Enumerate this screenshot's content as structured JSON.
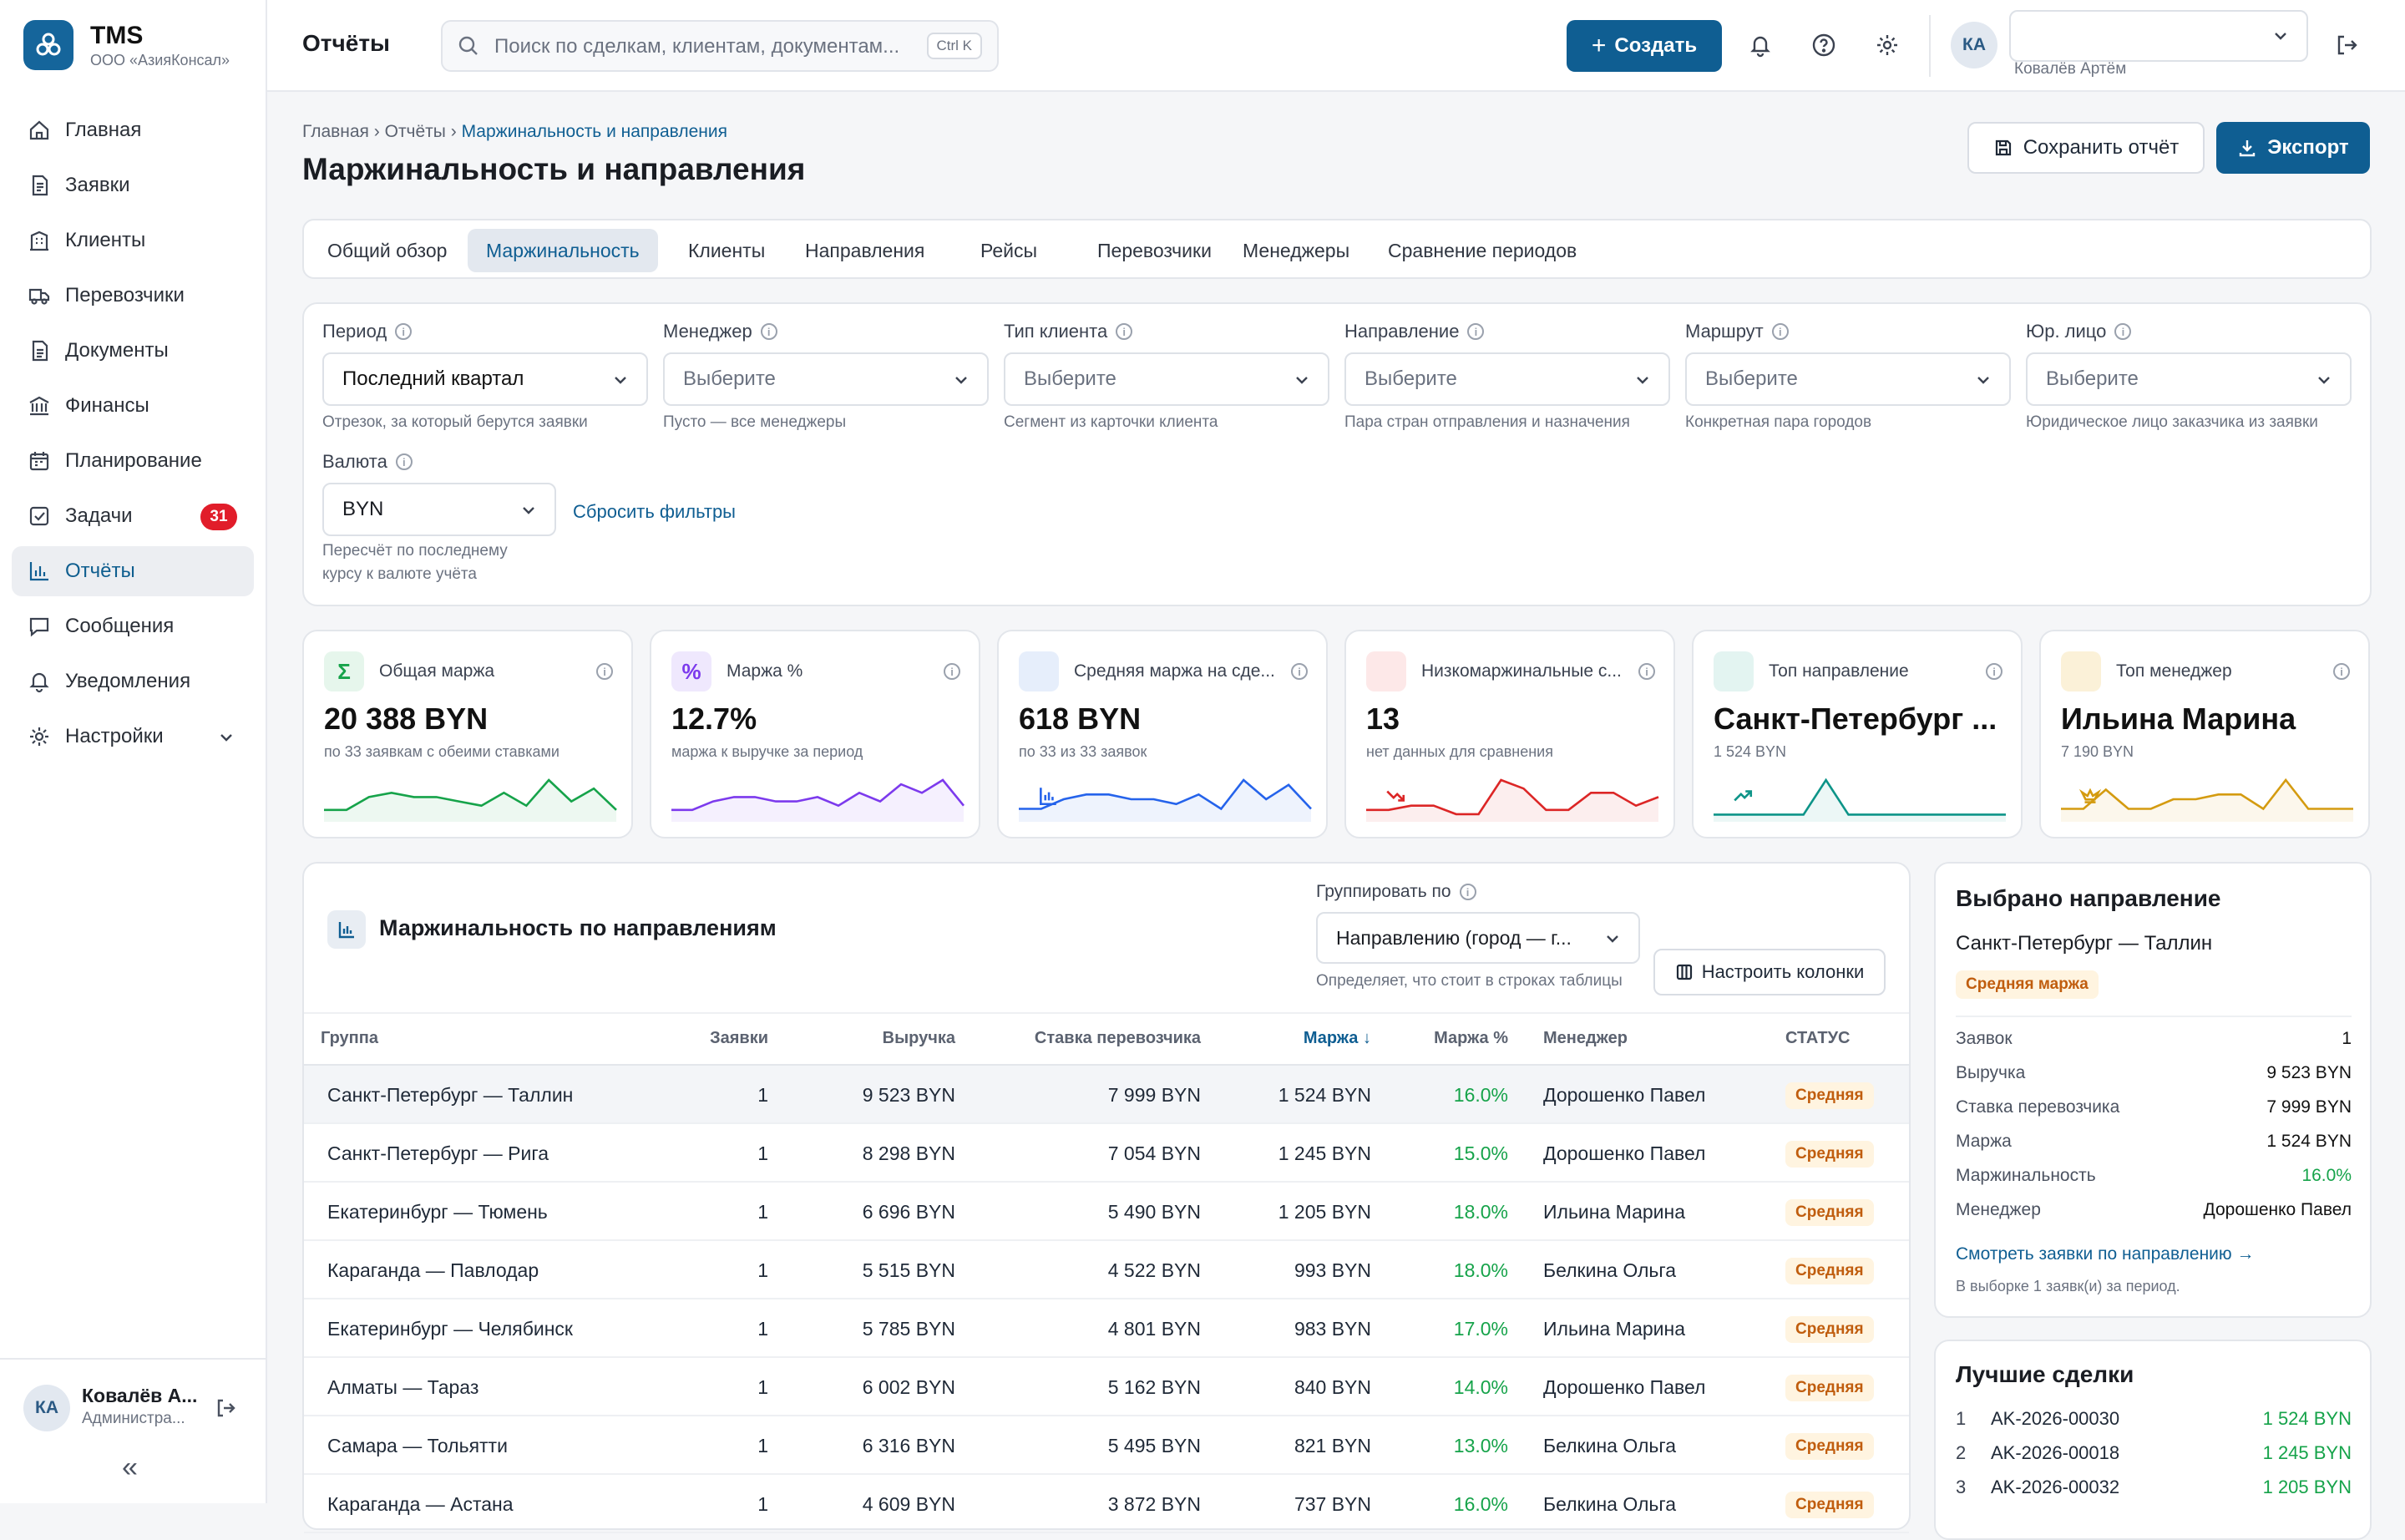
{
  "app": {
    "name": "TMS",
    "org": "ООО «АзияКонсал»"
  },
  "nav": {
    "items": [
      {
        "label": "Главная",
        "icon": "home-icon"
      },
      {
        "label": "Заявки",
        "icon": "document-icon"
      },
      {
        "label": "Клиенты",
        "icon": "building-icon"
      },
      {
        "label": "Перевозчики",
        "icon": "truck-icon"
      },
      {
        "label": "Документы",
        "icon": "file-icon"
      },
      {
        "label": "Финансы",
        "icon": "bank-icon"
      },
      {
        "label": "Планирование",
        "icon": "calendar-icon"
      },
      {
        "label": "Задачи",
        "icon": "checkbox-icon",
        "badge": "31"
      },
      {
        "label": "Отчёты",
        "icon": "bar-chart-icon",
        "active": true
      },
      {
        "label": "Сообщения",
        "icon": "message-icon"
      },
      {
        "label": "Уведомления",
        "icon": "bell-icon"
      },
      {
        "label": "Настройки",
        "icon": "gear-icon"
      }
    ],
    "user_initials": "КА",
    "user_name": "Ковалёв А...",
    "user_role": "Администра...",
    "collapse": "«"
  },
  "topbar": {
    "title": "Отчёты",
    "search_placeholder": "Поиск по сделкам, клиентам, документам...",
    "search_shortcut": "Ctrl K",
    "create_label": "Создать",
    "user_initials": "КА",
    "user_name": "Ковалёв Артём"
  },
  "page": {
    "breadcrumb": [
      "Главная",
      "Отчёты",
      "Маржинальность и направления"
    ],
    "title": "Маржинальность и направления",
    "save_label": "Сохранить отчёт",
    "export_label": "Экспорт"
  },
  "tabs": [
    "Общий обзор",
    "Маржинальность",
    "Клиенты",
    "Направления",
    "Рейсы",
    "Перевозчики",
    "Менеджеры",
    "Сравнение периодов"
  ],
  "active_tab": "Маржинальность",
  "filters": [
    {
      "label": "Период",
      "value": "Последний квартал",
      "hint": "Отрезок, за который берутся заявки"
    },
    {
      "label": "Менеджер",
      "value": "Выберите",
      "hint": "Пусто — все менеджеры"
    },
    {
      "label": "Тип клиента",
      "value": "Выберите",
      "hint": "Сегмент из карточки клиента"
    },
    {
      "label": "Направление",
      "value": "Выберите",
      "hint": "Пара стран отправления и назначения"
    },
    {
      "label": "Маршрут",
      "value": "Выберите",
      "hint": "Конкретная пара городов"
    },
    {
      "label": "Юр. лицо",
      "value": "Выберите",
      "hint": "Юридическое лицо заказчика из заявки"
    }
  ],
  "currency": {
    "label": "Валюта",
    "value": "BYN",
    "hint1": "Пересчёт по последнему",
    "hint2": "курсу к валюте учёта",
    "reset": "Сбросить фильтры"
  },
  "kpis": [
    {
      "title": "Общая маржа",
      "value": "20 388 BYN",
      "sub": "по 33 заявкам с обеими ставками",
      "icon": "sigma-icon",
      "glyph": "Σ",
      "color": "#16a34a",
      "bg": "#e6f6ec",
      "spark": [
        2,
        2,
        5,
        6,
        5,
        5,
        4,
        3,
        6,
        3,
        9,
        4,
        7,
        2
      ]
    },
    {
      "title": "Маржа %",
      "value": "12.7%",
      "sub": "маржа к выручке за период",
      "icon": "percent-icon",
      "glyph": "%",
      "color": "#7c3aed",
      "bg": "#efe8fd",
      "spark": [
        2,
        2,
        4,
        5,
        5,
        4,
        4,
        5,
        3,
        6,
        4,
        8,
        6,
        9,
        3
      ]
    },
    {
      "title": "Средняя маржа на сде...",
      "value": "618 BYN",
      "sub": "по 33 из 33 заявок",
      "icon": "bar-chart-icon",
      "glyph": "",
      "color": "#2563eb",
      "bg": "#e6eefb",
      "spark": [
        2,
        2,
        4,
        5,
        5,
        4,
        4,
        3,
        5,
        2,
        8,
        4,
        7,
        2
      ]
    },
    {
      "title": "Низкомаржинальные с...",
      "value": "13",
      "sub": "нет данных для сравнения",
      "icon": "trend-down-icon",
      "glyph": "",
      "color": "#dc2626",
      "bg": "#fde8e8",
      "spark": [
        2,
        2,
        3,
        3,
        1,
        1,
        9,
        7,
        2,
        2,
        6,
        6,
        3,
        5
      ]
    },
    {
      "title": "Топ направление",
      "value": "Санкт-Петербург ...",
      "sub": "1 524 BYN",
      "icon": "trend-up-icon",
      "glyph": "",
      "color": "#0d9488",
      "bg": "#e3f4f1",
      "spark": [
        1,
        1,
        1,
        1,
        1,
        10,
        1,
        1,
        1,
        1,
        1,
        1,
        1,
        1
      ]
    },
    {
      "title": "Топ менеджер",
      "value": "Ильина Марина",
      "sub": "7 190 BYN",
      "icon": "crown-icon",
      "glyph": "",
      "color": "#d49b10",
      "bg": "#fbf1d8",
      "spark": [
        2,
        2,
        6,
        2,
        2,
        4,
        4,
        5,
        5,
        2,
        8,
        2,
        2,
        2
      ]
    }
  ],
  "table": {
    "title": "Маржинальность по направлениям",
    "group_label": "Группировать по",
    "group_value": "Направлению (город — г...",
    "group_hint": "Определяет, что стоит в строках таблицы",
    "columns_btn": "Настроить колонки",
    "headers": [
      "Группа",
      "Заявки",
      "Выручка",
      "Ставка перевозчика",
      "Маржа ↓",
      "Маржа %",
      "Менеджер",
      "СТАТУС"
    ],
    "rows": [
      [
        "Санкт-Петербург — Таллин",
        "1",
        "9 523 BYN",
        "7 999 BYN",
        "1 524 BYN",
        "16.0%",
        "Дорошенко Павел",
        "Средняя"
      ],
      [
        "Санкт-Петербург — Рига",
        "1",
        "8 298 BYN",
        "7 054 BYN",
        "1 245 BYN",
        "15.0%",
        "Дорошенко Павел",
        "Средняя"
      ],
      [
        "Екатеринбург — Тюмень",
        "1",
        "6 696 BYN",
        "5 490 BYN",
        "1 205 BYN",
        "18.0%",
        "Ильина Марина",
        "Средняя"
      ],
      [
        "Караганда — Павлодар",
        "1",
        "5 515 BYN",
        "4 522 BYN",
        "993 BYN",
        "18.0%",
        "Белкина Ольга",
        "Средняя"
      ],
      [
        "Екатеринбург — Челябинск",
        "1",
        "5 785 BYN",
        "4 801 BYN",
        "983 BYN",
        "17.0%",
        "Ильина Марина",
        "Средняя"
      ],
      [
        "Алматы — Тараз",
        "1",
        "6 002 BYN",
        "5 162 BYN",
        "840 BYN",
        "14.0%",
        "Дорошенко Павел",
        "Средняя"
      ],
      [
        "Самара — Тольятти",
        "1",
        "6 316 BYN",
        "5 495 BYN",
        "821 BYN",
        "13.0%",
        "Белкина Ольга",
        "Средняя"
      ],
      [
        "Караганда — Астана",
        "1",
        "4 609 BYN",
        "3 872 BYN",
        "737 BYN",
        "16.0%",
        "Белкина Ольга",
        "Средняя"
      ]
    ]
  },
  "detail": {
    "title": "Выбрано направление",
    "route": "Санкт-Петербург — Таллин",
    "badge": "Средняя маржа",
    "rows": [
      [
        "Заявок",
        "1"
      ],
      [
        "Выручка",
        "9 523 BYN"
      ],
      [
        "Ставка перевозчика",
        "7 999 BYN"
      ],
      [
        "Маржа",
        "1 524 BYN"
      ],
      [
        "Маржинальность",
        "16.0%"
      ],
      [
        "Менеджер",
        "Дорошенко Павел"
      ]
    ],
    "link": "Смотреть заявки по направлению →",
    "note": "В выборке 1 заявк(и) за период."
  },
  "best": {
    "title": "Лучшие сделки",
    "rows": [
      [
        "1",
        "AK-2026-00030",
        "1 524 BYN"
      ],
      [
        "2",
        "AK-2026-00018",
        "1 245 BYN"
      ],
      [
        "3",
        "AK-2026-00032",
        "1 205 BYN"
      ]
    ]
  }
}
